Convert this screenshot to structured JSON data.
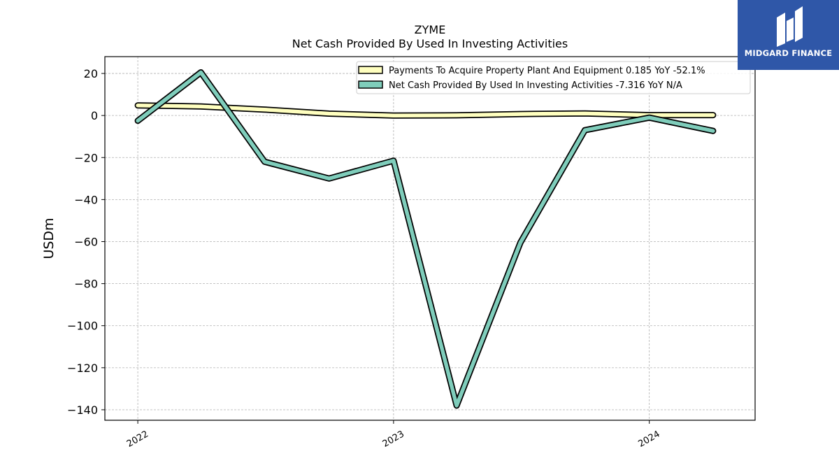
{
  "chart_data": {
    "type": "line",
    "title": "ZYME",
    "subtitle": "Net Cash Provided By Used In Investing Activities",
    "ylabel": "USDm",
    "xlabel": "",
    "ylim": [
      -145,
      28
    ],
    "xlim": [
      "2021-11-15",
      "2024-05-31"
    ],
    "yticks": [
      20,
      0,
      -20,
      -40,
      -60,
      -80,
      -100,
      -120,
      -140
    ],
    "ytick_labels": [
      "20",
      "0",
      "−20",
      "−40",
      "−60",
      "−80",
      "−100",
      "−120",
      "−140"
    ],
    "xticks": [
      "2022-01-01",
      "2023-01-01",
      "2024-01-01"
    ],
    "xtick_labels": [
      "2022",
      "2023",
      "2024"
    ],
    "grid": true,
    "legend_position": "top-right",
    "x": [
      "2022-01-01",
      "2022-04-01",
      "2022-07-01",
      "2022-10-01",
      "2023-01-01",
      "2023-04-01",
      "2023-07-01",
      "2023-10-01",
      "2024-01-01",
      "2024-04-01"
    ],
    "series": [
      {
        "name": "Payments To Acquire Property Plant And Equipment  0.185 YoY -52.1%",
        "color": "#ffffbf",
        "values": [
          4.8,
          4.3,
          2.8,
          0.9,
          0.0,
          0.1,
          0.7,
          1.0,
          0.2,
          0.185
        ]
      },
      {
        "name": "Net Cash Provided By Used In Investing Activities  -7.316 YoY N/A",
        "color": "#7fcdbb",
        "values": [
          -2.5,
          20.5,
          -22,
          -30,
          -21.5,
          -138,
          -60.5,
          -7,
          -1,
          -7.316
        ]
      }
    ]
  },
  "logo": {
    "text": "MIDGARD FINANCE",
    "bg_color": "#2f57a8"
  }
}
